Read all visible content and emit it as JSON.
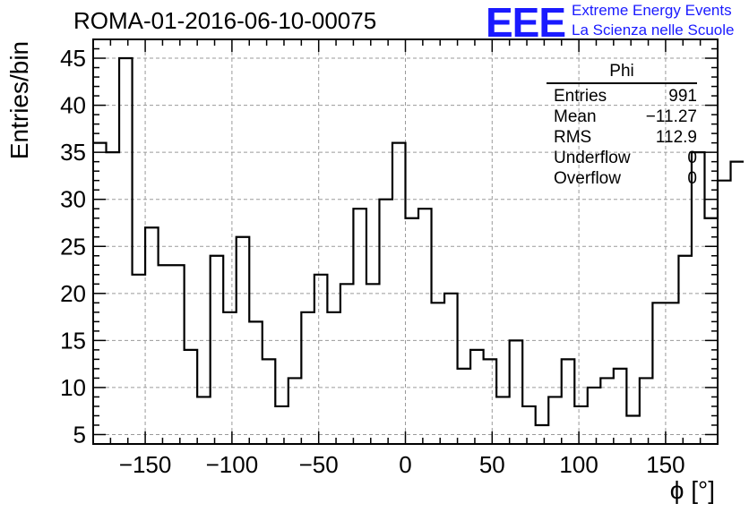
{
  "title": "ROMA-01-2016-06-10-00075",
  "logo": {
    "mark": "EEE",
    "line1": "Extreme Energy Events",
    "line2": "La Scienza nelle Scuole",
    "color": "#1a1aff"
  },
  "stats_box": {
    "name": "Phi",
    "rows": [
      {
        "label": "Entries",
        "value": "991"
      },
      {
        "label": "Mean",
        "value": "−11.27"
      },
      {
        "label": "RMS",
        "value": "112.9"
      },
      {
        "label": "Underflow",
        "value": "0"
      },
      {
        "label": "Overflow",
        "value": "0"
      }
    ]
  },
  "chart_data": {
    "type": "bar",
    "style": "step-histogram",
    "xlabel": "ϕ [°]",
    "ylabel": "Entries/bin",
    "xlim": [
      -180,
      180
    ],
    "ylim": [
      4,
      47
    ],
    "x_ticks": [
      -150,
      -100,
      -50,
      0,
      50,
      100,
      150
    ],
    "x_tick_labels": [
      "−150",
      "−100",
      "−50",
      "0",
      "50",
      "100",
      "150"
    ],
    "y_ticks": [
      5,
      10,
      15,
      20,
      25,
      30,
      35,
      40,
      45
    ],
    "bin_width": 7.5,
    "bin_edges_start": -180,
    "values": [
      36,
      35,
      45,
      22,
      27,
      23,
      23,
      14,
      9,
      24,
      18,
      26,
      17,
      13,
      8,
      11,
      18,
      22,
      18,
      21,
      29,
      21,
      30,
      36,
      28,
      29,
      19,
      20,
      12,
      14,
      13,
      9,
      15,
      8,
      6,
      9,
      13,
      8,
      10,
      11,
      12,
      7,
      11,
      19,
      19,
      24,
      35,
      28,
      32,
      34
    ],
    "grid": true,
    "line_color": "#000000",
    "grid_color": "#9a9a9a"
  }
}
